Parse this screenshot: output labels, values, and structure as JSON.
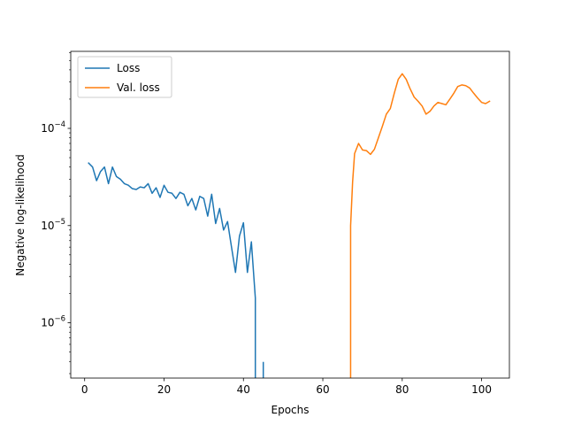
{
  "chart_data": {
    "type": "line",
    "xlabel": "Epochs",
    "ylabel": "Negative log-likelihood",
    "xlim": [
      -3.5,
      107
    ],
    "ylim": [
      2.7e-07,
      0.00062
    ],
    "yscale": "log",
    "grid": false,
    "legend_position": "top-left",
    "x_ticks": [
      0,
      20,
      40,
      60,
      80,
      100
    ],
    "x_tick_labels": [
      "0",
      "20",
      "40",
      "60",
      "80",
      "100"
    ],
    "y_ticks": [
      1e-06,
      1e-05,
      0.0001
    ],
    "y_tick_labels": [
      {
        "base": "10",
        "exp": "−6"
      },
      {
        "base": "10",
        "exp": "−5"
      },
      {
        "base": "10",
        "exp": "−4"
      }
    ],
    "series": [
      {
        "name": "Loss",
        "color": "#1f77b4",
        "segments": [
          {
            "x": [
              1,
              2,
              3,
              4,
              5,
              6,
              7,
              8,
              9,
              10,
              11,
              12,
              13,
              14,
              15,
              16,
              17,
              18,
              19,
              20,
              21,
              22,
              23,
              24,
              25,
              26,
              27,
              28,
              29,
              30,
              31,
              32,
              33,
              34,
              35,
              36,
              37,
              38,
              39,
              40,
              41,
              42,
              43,
              43
            ],
            "y": [
              4.4e-05,
              4e-05,
              2.9e-05,
              3.6e-05,
              4e-05,
              2.7e-05,
              4e-05,
              3.2e-05,
              3e-05,
              2.7e-05,
              2.6e-05,
              2.4e-05,
              2.35e-05,
              2.5e-05,
              2.45e-05,
              2.7e-05,
              2.15e-05,
              2.45e-05,
              1.95e-05,
              2.6e-05,
              2.2e-05,
              2.15e-05,
              1.9e-05,
              2.2e-05,
              2.1e-05,
              1.6e-05,
              1.9e-05,
              1.45e-05,
              2e-05,
              1.9e-05,
              1.25e-05,
              2.1e-05,
              1.05e-05,
              1.5e-05,
              9e-06,
              1.1e-05,
              6e-06,
              3.3e-06,
              7.8e-06,
              1.07e-05,
              3.3e-06,
              6.8e-06,
              1.8e-06,
              2.7e-07
            ]
          },
          {
            "x": [
              45,
              45
            ],
            "y": [
              3.9e-07,
              2.7e-07
            ]
          }
        ]
      },
      {
        "name": "Val. loss",
        "color": "#ff7f0e",
        "segments": [
          {
            "x": [
              67,
              67,
              67.5,
              68,
              69,
              70,
              71,
              72,
              73,
              74,
              75,
              76,
              77,
              78,
              79,
              80,
              81,
              82,
              83,
              84,
              85,
              86,
              87,
              88,
              89,
              90,
              91,
              92,
              93,
              94,
              95,
              96,
              97,
              98,
              99,
              100,
              101,
              102
            ],
            "y": [
              2.7e-07,
              1e-05,
              2.8e-05,
              5.5e-05,
              7e-05,
              6e-05,
              5.9e-05,
              5.4e-05,
              6.1e-05,
              8e-05,
              0.000105,
              0.00014,
              0.00016,
              0.00023,
              0.00032,
              0.000365,
              0.00032,
              0.000255,
              0.00021,
              0.00019,
              0.00017,
              0.00014,
              0.00015,
              0.00017,
              0.000185,
              0.00018,
              0.000175,
              0.0002,
              0.00023,
              0.00027,
              0.00028,
              0.000275,
              0.00026,
              0.00023,
              0.000205,
              0.000185,
              0.00018,
              0.00019
            ]
          }
        ]
      }
    ]
  }
}
